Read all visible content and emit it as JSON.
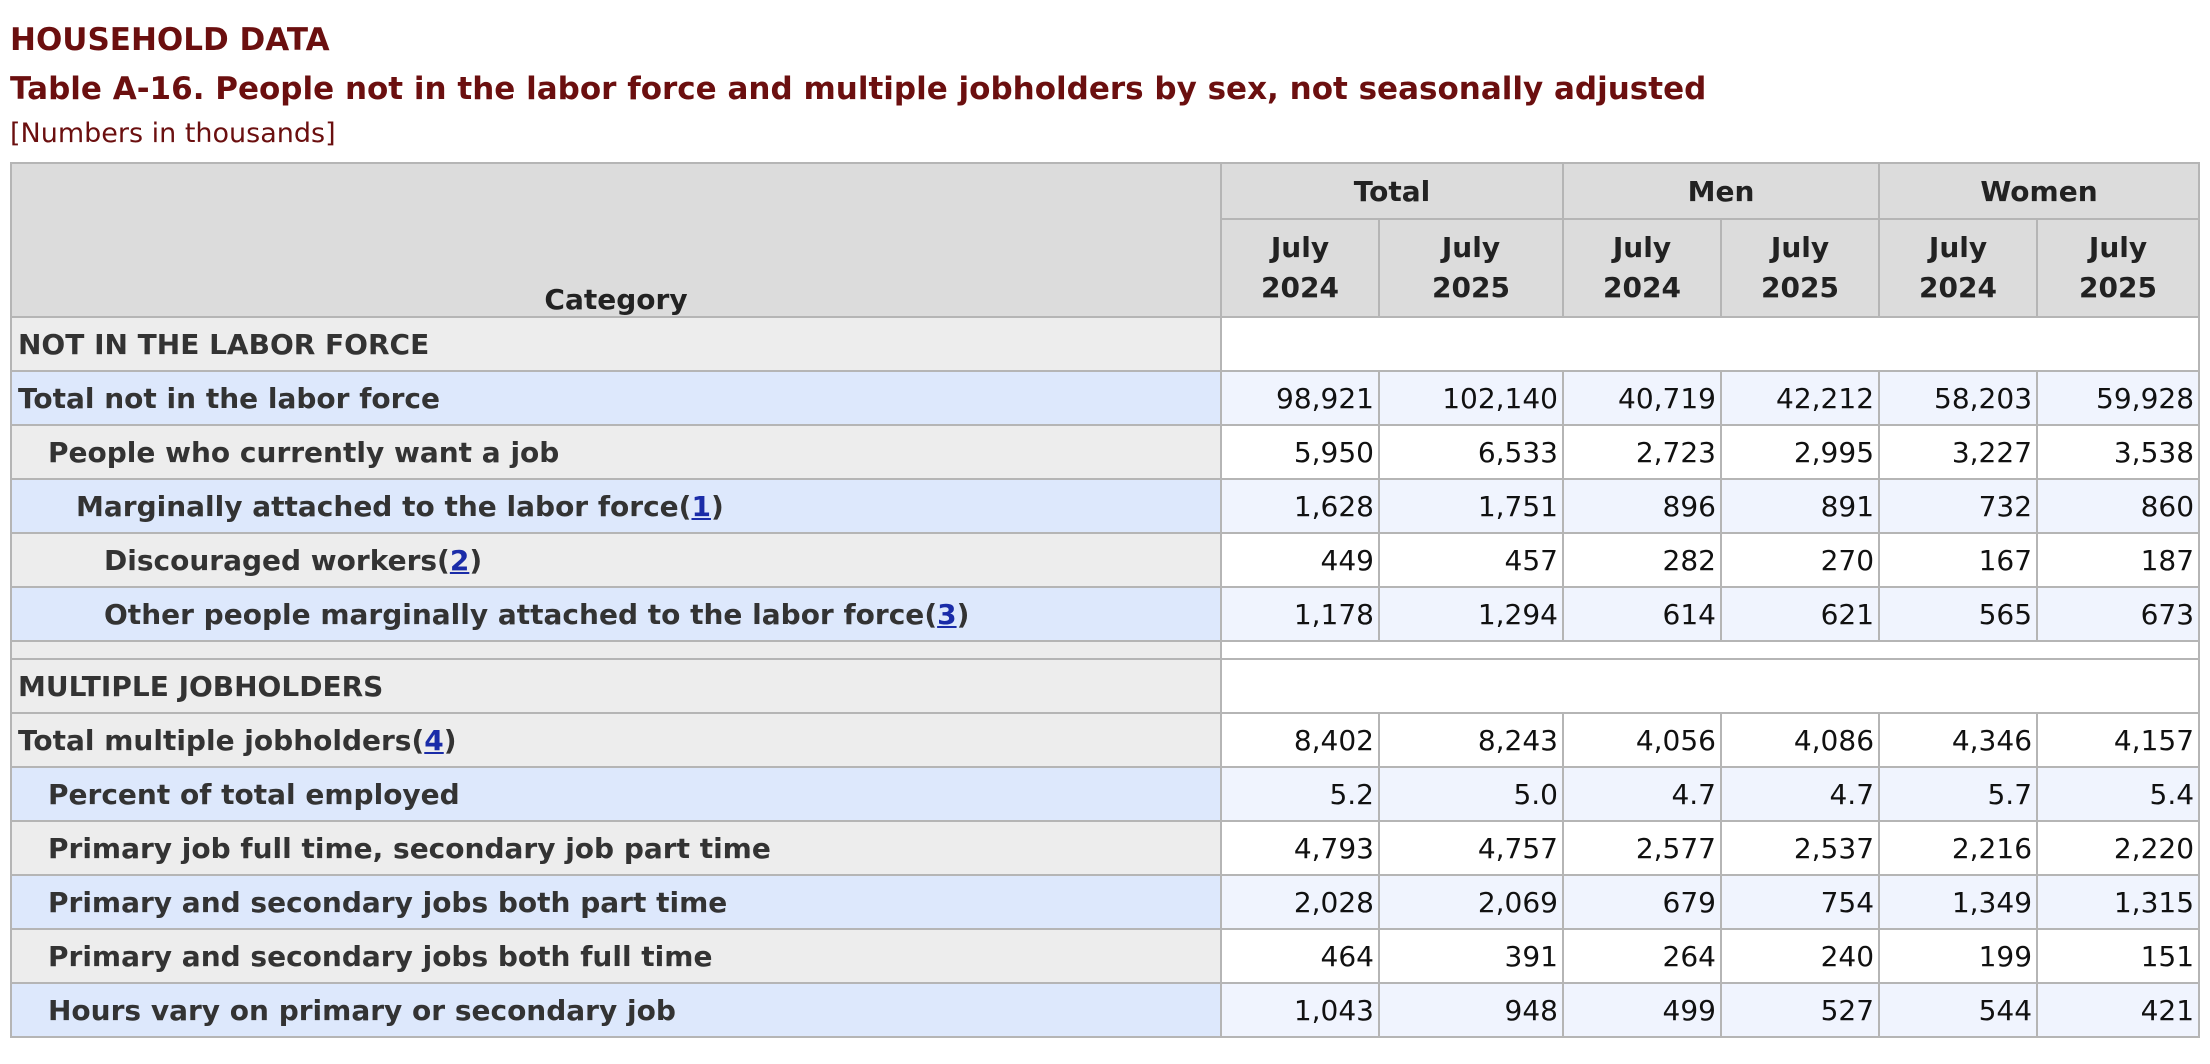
{
  "header": {
    "section_label": "HOUSEHOLD DATA",
    "table_title": "Table A-16. People not in the labor force and multiple jobholders by sex, not seasonally adjusted",
    "units_note": "[Numbers in thousands]"
  },
  "table": {
    "category_header": "Category",
    "groups": [
      "Total",
      "Men",
      "Women"
    ],
    "period_month": "July",
    "periods": [
      "2024",
      "2025",
      "2024",
      "2025",
      "2024",
      "2025"
    ],
    "sections": [
      {
        "title": "NOT IN THE LABOR FORCE",
        "rows": [
          {
            "label": "Total not in the labor force",
            "indent": 0,
            "footnote": "",
            "values": [
              "98,921",
              "102,140",
              "40,719",
              "42,212",
              "58,203",
              "59,928"
            ]
          },
          {
            "label": "People who currently want a job",
            "indent": 1,
            "footnote": "",
            "values": [
              "5,950",
              "6,533",
              "2,723",
              "2,995",
              "3,227",
              "3,538"
            ]
          },
          {
            "label": "Marginally attached to the labor force",
            "indent": 2,
            "footnote": "1",
            "values": [
              "1,628",
              "1,751",
              "896",
              "891",
              "732",
              "860"
            ]
          },
          {
            "label": "Discouraged workers",
            "indent": 3,
            "footnote": "2",
            "values": [
              "449",
              "457",
              "282",
              "270",
              "167",
              "187"
            ]
          },
          {
            "label": "Other people marginally attached to the labor force",
            "indent": 3,
            "footnote": "3",
            "values": [
              "1,178",
              "1,294",
              "614",
              "621",
              "565",
              "673"
            ]
          }
        ]
      },
      {
        "title": "MULTIPLE JOBHOLDERS",
        "rows": [
          {
            "label": "Total multiple jobholders",
            "indent": 0,
            "footnote": "4",
            "values": [
              "8,402",
              "8,243",
              "4,056",
              "4,086",
              "4,346",
              "4,157"
            ]
          },
          {
            "label": "Percent of total employed",
            "indent": 1,
            "footnote": "",
            "values": [
              "5.2",
              "5.0",
              "4.7",
              "4.7",
              "5.7",
              "5.4"
            ]
          },
          {
            "label": "Primary job full time, secondary job part time",
            "indent": 1,
            "footnote": "",
            "values": [
              "4,793",
              "4,757",
              "2,577",
              "2,537",
              "2,216",
              "2,220"
            ]
          },
          {
            "label": "Primary and secondary jobs both part time",
            "indent": 1,
            "footnote": "",
            "values": [
              "2,028",
              "2,069",
              "679",
              "754",
              "1,349",
              "1,315"
            ]
          },
          {
            "label": "Primary and secondary jobs both full time",
            "indent": 1,
            "footnote": "",
            "values": [
              "464",
              "391",
              "264",
              "240",
              "199",
              "151"
            ]
          },
          {
            "label": "Hours vary on primary or secondary job",
            "indent": 1,
            "footnote": "",
            "values": [
              "1,043",
              "948",
              "499",
              "527",
              "544",
              "421"
            ]
          }
        ]
      }
    ]
  }
}
